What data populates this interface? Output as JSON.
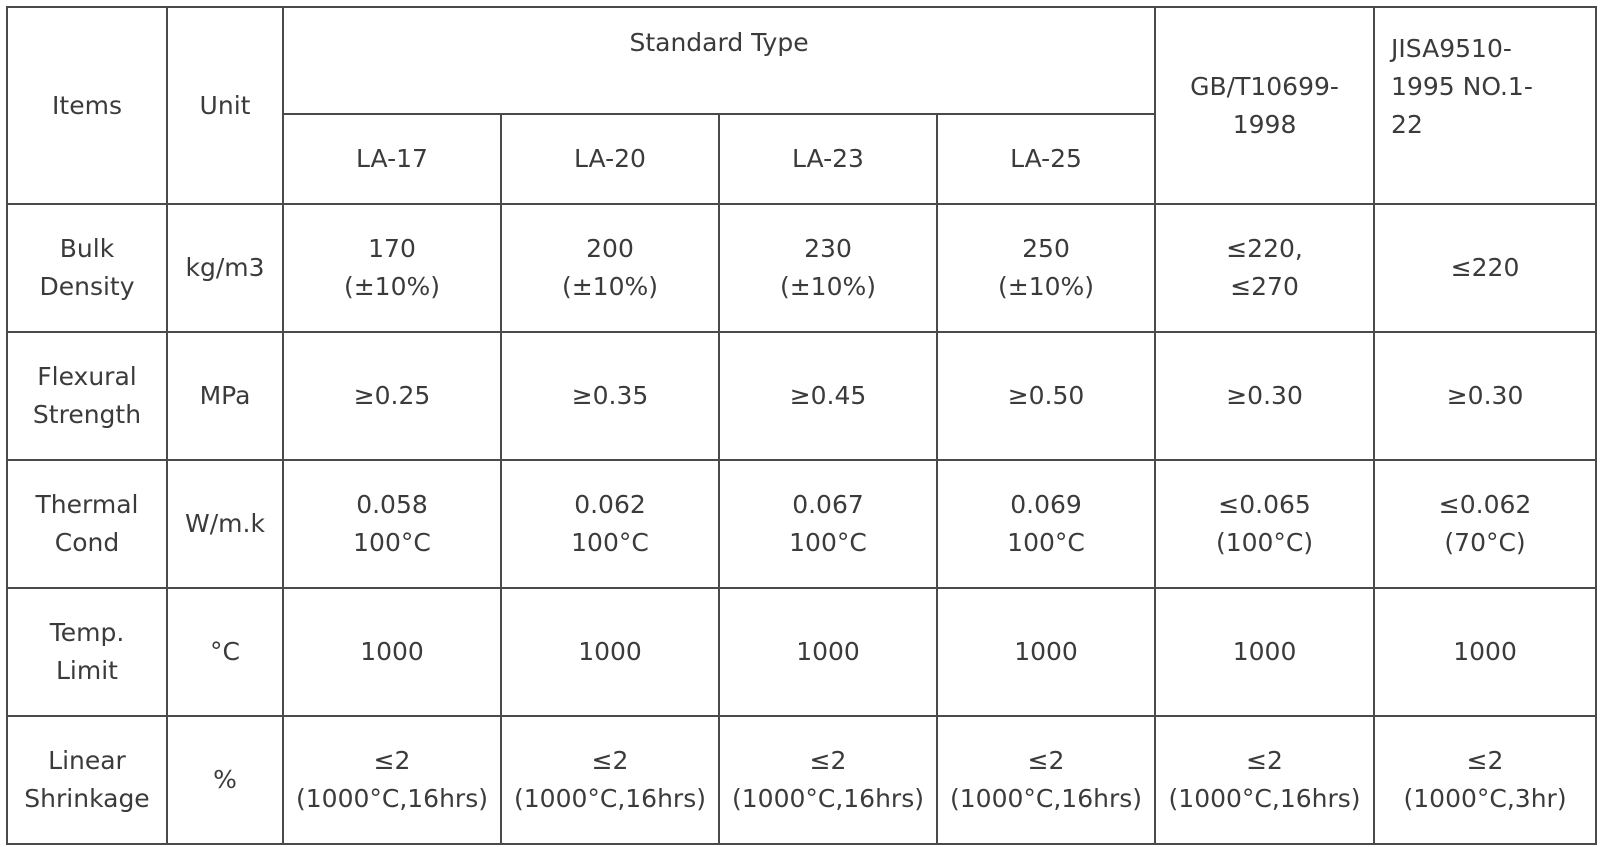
{
  "table": {
    "header": {
      "items": "Items",
      "unit": "Unit",
      "group": "Standard Type",
      "types": [
        "LA-17",
        "LA-20",
        "LA-23",
        "LA-25"
      ],
      "gb": [
        "GB/T10699-",
        "1998"
      ],
      "jis": [
        "JISA9510-",
        "1995 NO.1-",
        "22"
      ]
    },
    "rows": [
      {
        "item": [
          "Bulk",
          "Density"
        ],
        "unit": "kg/m3",
        "cells": [
          [
            "170",
            "(±10%)"
          ],
          [
            "200",
            "(±10%)"
          ],
          [
            "230",
            "(±10%)"
          ],
          [
            "250",
            "(±10%)"
          ],
          [
            "≤220,",
            "≤270"
          ],
          [
            "≤220"
          ]
        ]
      },
      {
        "item": [
          "Flexural",
          "Strength"
        ],
        "unit": "MPa",
        "cells": [
          [
            "≥0.25"
          ],
          [
            "≥0.35"
          ],
          [
            "≥0.45"
          ],
          [
            "≥0.50"
          ],
          [
            "≥0.30"
          ],
          [
            "≥0.30"
          ]
        ]
      },
      {
        "item": [
          "Thermal",
          "Cond"
        ],
        "unit": "W/m.k",
        "cells": [
          [
            "0.058",
            "100°C"
          ],
          [
            "0.062",
            "100°C"
          ],
          [
            "0.067",
            "100°C"
          ],
          [
            "0.069",
            "100°C"
          ],
          [
            "≤0.065",
            "(100°C)"
          ],
          [
            "≤0.062",
            "(70°C)"
          ]
        ]
      },
      {
        "item": [
          "Temp.",
          "Limit"
        ],
        "unit": "°C",
        "cells": [
          [
            "1000"
          ],
          [
            "1000"
          ],
          [
            "1000"
          ],
          [
            "1000"
          ],
          [
            "1000"
          ],
          [
            "1000"
          ]
        ]
      },
      {
        "item": [
          "Linear",
          "Shrinkage"
        ],
        "unit": "%",
        "cells": [
          [
            "≤2",
            "(1000°C,16hrs)"
          ],
          [
            "≤2",
            "(1000°C,16hrs)"
          ],
          [
            "≤2",
            "(1000°C,16hrs)"
          ],
          [
            "≤2",
            "(1000°C,16hrs)"
          ],
          [
            "≤2",
            "(1000°C,16hrs)"
          ],
          [
            "≤2",
            "(1000°C,3hr)"
          ]
        ]
      }
    ]
  }
}
